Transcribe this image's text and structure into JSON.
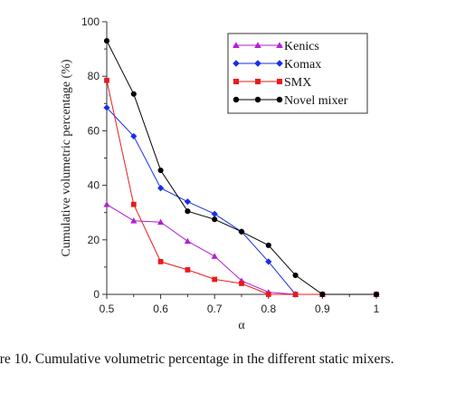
{
  "chart_data": {
    "type": "line",
    "title": "",
    "xlabel": "α",
    "ylabel": "Cumulative volumetric percentage (%)",
    "xlim": [
      0.5,
      1.0
    ],
    "ylim": [
      0,
      100
    ],
    "x_ticks": [
      "0.5",
      "0.6",
      "0.7",
      "0.8",
      "0.9",
      "1"
    ],
    "y_ticks": [
      "0",
      "20",
      "40",
      "60",
      "80",
      "100"
    ],
    "grid": false,
    "legend_position": "top-right",
    "series": [
      {
        "name": "Kenics",
        "color": "#b21fd6",
        "marker": "triangle",
        "x": [
          0.5,
          0.55,
          0.6,
          0.65,
          0.7,
          0.75,
          0.8,
          0.85,
          0.9,
          1.0
        ],
        "y": [
          33,
          27,
          26.5,
          19.5,
          14,
          5,
          0.8,
          0,
          0,
          0
        ]
      },
      {
        "name": "Komax",
        "color": "#1a2ee8",
        "marker": "diamond",
        "x": [
          0.5,
          0.55,
          0.6,
          0.65,
          0.7,
          0.75,
          0.8,
          0.85,
          0.9,
          1.0
        ],
        "y": [
          68.5,
          58,
          39,
          34,
          29.5,
          23,
          12,
          0,
          0,
          0
        ]
      },
      {
        "name": "SMX",
        "color": "#e81b1b",
        "marker": "square",
        "x": [
          0.5,
          0.55,
          0.6,
          0.65,
          0.7,
          0.75,
          0.8,
          0.85,
          0.9,
          1.0
        ],
        "y": [
          78.5,
          33,
          12,
          9,
          5.5,
          4,
          0,
          0,
          0,
          0
        ]
      },
      {
        "name": "Novel mixer",
        "color": "#000000",
        "marker": "circle",
        "x": [
          0.5,
          0.55,
          0.6,
          0.65,
          0.7,
          0.75,
          0.8,
          0.85,
          0.9,
          1.0
        ],
        "y": [
          93,
          73.5,
          45.5,
          30.5,
          27.5,
          23,
          18,
          7,
          0,
          0
        ]
      }
    ]
  },
  "caption": "ure 10. Cumulative volumetric percentage in the different static mixers."
}
